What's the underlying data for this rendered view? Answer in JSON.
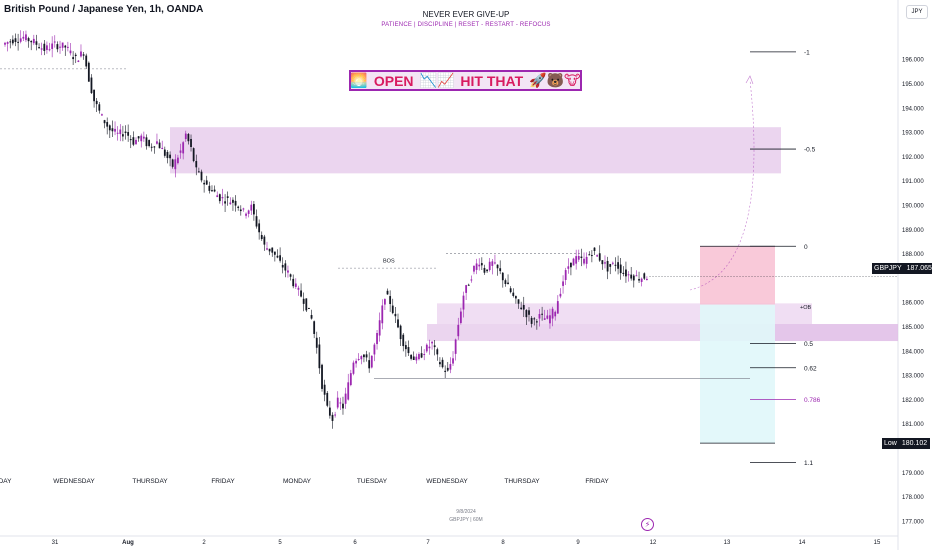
{
  "title": "British Pound / Japanese Yen, 1h, OANDA",
  "banner": {
    "main": "NEVER EVER GIVE-UP",
    "sub": "PATIENCE  |  DISCIPLINE  |  RESET - RESTART - REFOCUS"
  },
  "open_banner": {
    "emoji_1": "🌅",
    "open_text": "OPEN",
    "emoji_2": "📉📈",
    "hit_text": "HIT THAT",
    "emoji_3": "🚀🐻🐮"
  },
  "currency_badge": "JPY",
  "price_tags": {
    "symbol_label": "GBPJPY",
    "current_price": "187.065",
    "low_label": "Low",
    "low_price": "180.102"
  },
  "footer": {
    "date": "9/8/2024",
    "symbol_tf": "GBPJPY | 60M"
  },
  "colors": {
    "bull": "#9c27b0",
    "bear": "#131722",
    "zone": "#e1bee7",
    "stop": "#f8bbd0",
    "target": "#e0f7fa",
    "axis_text": "#131722",
    "grid": "#f0f3fa"
  },
  "chart_data": {
    "type": "candlestick",
    "y_axis": {
      "min": 176.5,
      "max": 197.2,
      "ticks": [
        "196.000",
        "195.000",
        "194.000",
        "193.000",
        "192.000",
        "191.000",
        "190.000",
        "189.000",
        "188.000",
        "186.000",
        "185.000",
        "184.000",
        "183.000",
        "182.000",
        "181.000",
        "179.000",
        "178.000",
        "177.000"
      ]
    },
    "x_axis": {
      "day_labels": [
        "DAY",
        "WEDNESDAY",
        "THURSDAY",
        "FRIDAY",
        "MONDAY",
        "TUESDAY",
        "WEDNESDAY",
        "THURSDAY",
        "FRIDAY"
      ],
      "date_labels": [
        "31",
        "Aug",
        "2",
        "5",
        "6",
        "7",
        "8",
        "9",
        "12",
        "13",
        "14",
        "15"
      ]
    },
    "price_path": [
      [
        0,
        196.6
      ],
      [
        4,
        196.8
      ],
      [
        8,
        196.9
      ],
      [
        12,
        196.7
      ],
      [
        16,
        196.4
      ],
      [
        20,
        196.6
      ],
      [
        24,
        196.5
      ],
      [
        28,
        196.0
      ],
      [
        31,
        196.3
      ],
      [
        33,
        195.2
      ],
      [
        35,
        194.3
      ],
      [
        38,
        193.6
      ],
      [
        41,
        193.1
      ],
      [
        44,
        192.9
      ],
      [
        47,
        193.0
      ],
      [
        50,
        192.6
      ],
      [
        53,
        192.8
      ],
      [
        56,
        192.4
      ],
      [
        59,
        192.6
      ],
      [
        62,
        192.1
      ],
      [
        65,
        191.6
      ],
      [
        68,
        192.2
      ],
      [
        70,
        192.9
      ],
      [
        72,
        192.3
      ],
      [
        74,
        191.4
      ],
      [
        77,
        190.9
      ],
      [
        80,
        190.6
      ],
      [
        83,
        190.3
      ],
      [
        86,
        190.2
      ],
      [
        89,
        190.1
      ],
      [
        92,
        189.7
      ],
      [
        95,
        189.9
      ],
      [
        97,
        189.2
      ],
      [
        100,
        188.3
      ],
      [
        103,
        188.1
      ],
      [
        106,
        187.6
      ],
      [
        109,
        187.2
      ],
      [
        112,
        186.6
      ],
      [
        115,
        186.1
      ],
      [
        118,
        185.3
      ],
      [
        120,
        184.1
      ],
      [
        122,
        182.6
      ],
      [
        124,
        181.6
      ],
      [
        126,
        181.2
      ],
      [
        128,
        181.9
      ],
      [
        130,
        181.7
      ],
      [
        132,
        182.6
      ],
      [
        134,
        183.6
      ],
      [
        137,
        183.9
      ],
      [
        140,
        183.4
      ],
      [
        143,
        184.6
      ],
      [
        146,
        186.3
      ],
      [
        148,
        186.0
      ],
      [
        150,
        185.3
      ],
      [
        152,
        184.6
      ],
      [
        155,
        183.9
      ],
      [
        158,
        183.6
      ],
      [
        161,
        184.0
      ],
      [
        164,
        184.3
      ],
      [
        166,
        183.7
      ],
      [
        168,
        183.3
      ],
      [
        170,
        183.1
      ],
      [
        172,
        183.8
      ],
      [
        174,
        185.1
      ],
      [
        176,
        186.3
      ],
      [
        178,
        186.8
      ],
      [
        180,
        187.4
      ],
      [
        182,
        187.7
      ],
      [
        184,
        187.3
      ],
      [
        187,
        187.6
      ],
      [
        190,
        187.2
      ],
      [
        193,
        186.6
      ],
      [
        196,
        186.0
      ],
      [
        199,
        185.7
      ],
      [
        202,
        185.2
      ],
      [
        205,
        185.4
      ],
      [
        208,
        185.3
      ],
      [
        211,
        185.7
      ],
      [
        214,
        186.9
      ],
      [
        216,
        187.5
      ],
      [
        219,
        187.8
      ],
      [
        222,
        187.7
      ],
      [
        225,
        188.1
      ],
      [
        228,
        187.8
      ],
      [
        231,
        187.4
      ],
      [
        234,
        187.6
      ],
      [
        237,
        187.2
      ],
      [
        240,
        187.1
      ],
      [
        243,
        187.0
      ],
      [
        246,
        187.065
      ]
    ],
    "zones": [
      {
        "name": "supply-upper",
        "y_top": 193.2,
        "y_bottom": 191.3
      },
      {
        "name": "demand-left",
        "y_top": 185.1,
        "y_bottom": 184.4
      },
      {
        "name": "demand-right",
        "y_top": 185.1,
        "y_bottom": 184.4
      }
    ],
    "position": {
      "entry": 185.9,
      "stop": 188.3,
      "target": 180.2
    },
    "fib_levels": [
      {
        "label": "-1",
        "price": 196.3
      },
      {
        "label": "-0.5",
        "price": 192.3
      },
      {
        "label": "0",
        "price": 188.3
      },
      {
        "label": "0.5",
        "price": 184.3
      },
      {
        "label": "0.62",
        "price": 183.3
      },
      {
        "label": "0.786",
        "price": 182.0
      },
      {
        "label": "1.1",
        "price": 179.4
      }
    ],
    "annotations": [
      {
        "label": "BOS",
        "price": 187.5
      },
      {
        "label": "+OB",
        "price": 185.6
      }
    ],
    "horizontal_lines": [
      {
        "name": "top-left-dotted",
        "price": 195.6
      },
      {
        "name": "bos-dotted",
        "price": 187.4
      },
      {
        "name": "high-dotted",
        "price": 188.0
      },
      {
        "name": "low-thin",
        "price": 182.85
      }
    ]
  }
}
